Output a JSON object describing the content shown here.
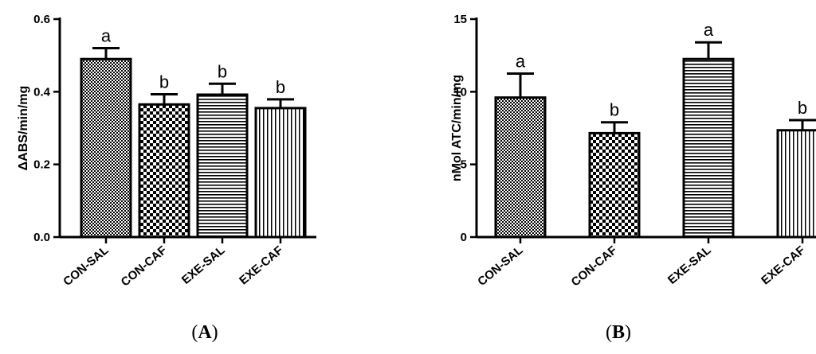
{
  "chart_data": [
    {
      "type": "bar",
      "panel_label": "(A)",
      "ylabel": "ΔABS/min/mg",
      "ylim": [
        0,
        0.6
      ],
      "yticks": [
        "0.0",
        "0.2",
        "0.4",
        "0.6"
      ],
      "categories": [
        "CON-SAL",
        "CON-CAF",
        "EXE-SAL",
        "EXE-CAF"
      ],
      "values": [
        0.49,
        0.365,
        0.392,
        0.355
      ],
      "errors": [
        0.03,
        0.028,
        0.03,
        0.024
      ],
      "significance": [
        "a",
        "b",
        "b",
        "b"
      ],
      "patterns": [
        "fine-check",
        "coarse-check",
        "horizontal-lines",
        "vertical-lines"
      ]
    },
    {
      "type": "bar",
      "panel_label": "(B)",
      "ylabel": "nMol ATC/min/mg",
      "ylim": [
        0,
        15
      ],
      "yticks": [
        "0",
        "5",
        "10",
        "15"
      ],
      "categories": [
        "CON-SAL",
        "CON-CAF",
        "EXE-SAL",
        "EXE-CAF"
      ],
      "values": [
        9.6,
        7.15,
        12.25,
        7.35
      ],
      "errors": [
        1.65,
        0.75,
        1.15,
        0.7
      ],
      "significance": [
        "a",
        "b",
        "a",
        "b"
      ],
      "patterns": [
        "fine-check",
        "coarse-check",
        "horizontal-lines",
        "vertical-lines"
      ]
    }
  ]
}
